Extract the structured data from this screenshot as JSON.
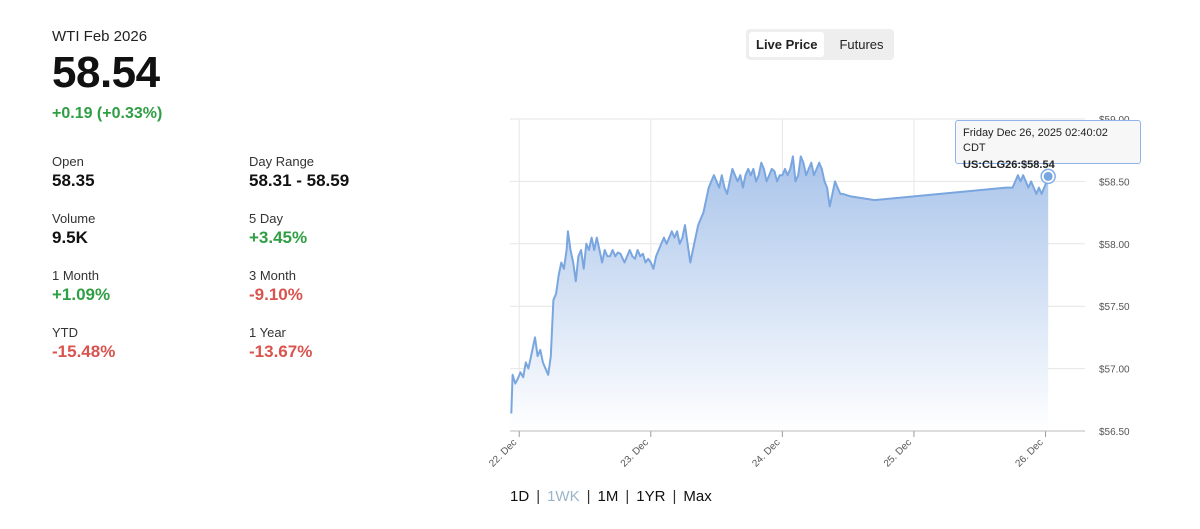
{
  "quote": {
    "instrument": "WTI Feb 2026",
    "price": "58.54",
    "change": "+0.19 (+0.33%)"
  },
  "stats": [
    {
      "label": "Open",
      "value": "58.35",
      "tone": "neutral"
    },
    {
      "label": "Day Range",
      "value": "58.31 - 58.59",
      "tone": "neutral"
    },
    {
      "label": "Volume",
      "value": "9.5K",
      "tone": "neutral"
    },
    {
      "label": "5 Day",
      "value": "+3.45%",
      "tone": "green"
    },
    {
      "label": "1 Month",
      "value": "+1.09%",
      "tone": "green"
    },
    {
      "label": "3 Month",
      "value": "-9.10%",
      "tone": "red"
    },
    {
      "label": "YTD",
      "value": "-15.48%",
      "tone": "red"
    },
    {
      "label": "1 Year",
      "value": "-13.67%",
      "tone": "red"
    }
  ],
  "toggle": {
    "options": [
      "Live Price",
      "Futures"
    ],
    "active": "Live Price"
  },
  "tooltip": {
    "line1": "Friday Dec 26, 2025 02:40:02 CDT",
    "line2": "US:CLG26:$58.54"
  },
  "ranges": {
    "options": [
      "1D",
      "1WK",
      "1M",
      "1YR",
      "Max"
    ],
    "active": "1WK"
  },
  "colors": {
    "line": "#7aa6e0",
    "area_top": "#a9c4ea",
    "area_bottom": "#ffffff",
    "up": "#2f9e44",
    "down": "#d9534f"
  },
  "chart_data": {
    "type": "area",
    "title": "",
    "xlabel": "",
    "ylabel": "",
    "ylim": [
      56.5,
      59.0
    ],
    "y_ticks": [
      56.5,
      57.0,
      57.5,
      58.0,
      58.5,
      59.0
    ],
    "y_tick_labels": [
      "$56.50",
      "$57.00",
      "$57.50",
      "$58.00",
      "$58.50",
      "$59.00"
    ],
    "x_ticks": [
      {
        "label": "22. Dec",
        "day": 22
      },
      {
        "label": "23. Dec",
        "day": 23
      },
      {
        "label": "24. Dec",
        "day": 24
      },
      {
        "label": "25. Dec",
        "day": 25
      },
      {
        "label": "26. Dec",
        "day": 26
      }
    ],
    "grid": true,
    "series": [
      {
        "values": [
          [
            21.94,
            56.64
          ],
          [
            21.95,
            56.95
          ],
          [
            21.97,
            56.88
          ],
          [
            21.99,
            56.92
          ],
          [
            22.01,
            56.97
          ],
          [
            22.03,
            56.93
          ],
          [
            22.05,
            57.05
          ],
          [
            22.07,
            57.0
          ],
          [
            22.09,
            57.1
          ],
          [
            22.11,
            57.2
          ],
          [
            22.12,
            57.25
          ],
          [
            22.14,
            57.1
          ],
          [
            22.16,
            57.15
          ],
          [
            22.18,
            57.05
          ],
          [
            22.2,
            57.0
          ],
          [
            22.22,
            56.95
          ],
          [
            22.24,
            57.1
          ],
          [
            22.26,
            57.55
          ],
          [
            22.28,
            57.6
          ],
          [
            22.3,
            57.75
          ],
          [
            22.32,
            57.85
          ],
          [
            22.34,
            57.8
          ],
          [
            22.36,
            57.95
          ],
          [
            22.37,
            58.1
          ],
          [
            22.39,
            57.95
          ],
          [
            22.41,
            57.85
          ],
          [
            22.43,
            57.7
          ],
          [
            22.45,
            57.9
          ],
          [
            22.47,
            57.95
          ],
          [
            22.49,
            57.8
          ],
          [
            22.51,
            58.0
          ],
          [
            22.53,
            57.95
          ],
          [
            22.55,
            58.05
          ],
          [
            22.57,
            57.95
          ],
          [
            22.59,
            58.05
          ],
          [
            22.61,
            57.95
          ],
          [
            22.63,
            57.85
          ],
          [
            22.65,
            57.95
          ],
          [
            22.67,
            57.9
          ],
          [
            22.69,
            57.9
          ],
          [
            22.71,
            57.95
          ],
          [
            22.73,
            57.9
          ],
          [
            22.75,
            57.93
          ],
          [
            22.77,
            57.92
          ],
          [
            22.8,
            57.85
          ],
          [
            22.82,
            57.9
          ],
          [
            22.84,
            57.95
          ],
          [
            22.86,
            57.9
          ],
          [
            22.88,
            57.88
          ],
          [
            22.9,
            57.95
          ],
          [
            22.92,
            57.9
          ],
          [
            22.94,
            57.92
          ],
          [
            22.96,
            57.85
          ],
          [
            22.98,
            57.88
          ],
          [
            23.0,
            57.85
          ],
          [
            23.02,
            57.8
          ],
          [
            23.04,
            57.9
          ],
          [
            23.06,
            57.95
          ],
          [
            23.08,
            58.0
          ],
          [
            23.1,
            58.05
          ],
          [
            23.12,
            58.0
          ],
          [
            23.14,
            58.05
          ],
          [
            23.16,
            58.1
          ],
          [
            23.18,
            58.05
          ],
          [
            23.2,
            58.1
          ],
          [
            23.22,
            58.0
          ],
          [
            23.24,
            58.05
          ],
          [
            23.26,
            58.15
          ],
          [
            23.28,
            58.0
          ],
          [
            23.3,
            57.85
          ],
          [
            23.32,
            57.95
          ],
          [
            23.34,
            58.05
          ],
          [
            23.36,
            58.15
          ],
          [
            23.38,
            58.2
          ],
          [
            23.4,
            58.25
          ],
          [
            23.42,
            58.35
          ],
          [
            23.44,
            58.45
          ],
          [
            23.46,
            58.5
          ],
          [
            23.48,
            58.55
          ],
          [
            23.5,
            58.5
          ],
          [
            23.52,
            58.45
          ],
          [
            23.54,
            58.55
          ],
          [
            23.56,
            58.45
          ],
          [
            23.58,
            58.4
          ],
          [
            23.6,
            58.5
          ],
          [
            23.62,
            58.6
          ],
          [
            23.64,
            58.55
          ],
          [
            23.66,
            58.5
          ],
          [
            23.68,
            58.55
          ],
          [
            23.7,
            58.45
          ],
          [
            23.72,
            58.55
          ],
          [
            23.74,
            58.6
          ],
          [
            23.76,
            58.55
          ],
          [
            23.78,
            58.6
          ],
          [
            23.8,
            58.5
          ],
          [
            23.82,
            58.55
          ],
          [
            23.84,
            58.65
          ],
          [
            23.86,
            58.6
          ],
          [
            23.88,
            58.5
          ],
          [
            23.9,
            58.55
          ],
          [
            23.92,
            58.6
          ],
          [
            23.94,
            58.58
          ],
          [
            23.96,
            58.5
          ],
          [
            23.98,
            58.55
          ],
          [
            24.0,
            58.55
          ],
          [
            24.02,
            58.6
          ],
          [
            24.04,
            58.55
          ],
          [
            24.06,
            58.6
          ],
          [
            24.08,
            58.7
          ],
          [
            24.1,
            58.5
          ],
          [
            24.12,
            58.55
          ],
          [
            24.14,
            58.7
          ],
          [
            24.16,
            58.65
          ],
          [
            24.18,
            58.55
          ],
          [
            24.2,
            58.6
          ],
          [
            24.22,
            58.65
          ],
          [
            24.24,
            58.55
          ],
          [
            24.26,
            58.6
          ],
          [
            24.28,
            58.65
          ],
          [
            24.3,
            58.6
          ],
          [
            24.32,
            58.5
          ],
          [
            24.34,
            58.45
          ],
          [
            24.36,
            58.3
          ],
          [
            24.38,
            58.4
          ],
          [
            24.4,
            58.5
          ],
          [
            24.42,
            58.45
          ],
          [
            24.44,
            58.4
          ],
          [
            24.46,
            58.4
          ],
          [
            24.52,
            58.38
          ],
          [
            24.7,
            58.35
          ],
          [
            24.9,
            58.37
          ],
          [
            25.1,
            58.39
          ],
          [
            25.3,
            58.41
          ],
          [
            25.5,
            58.43
          ],
          [
            25.7,
            58.45
          ],
          [
            25.75,
            58.45
          ],
          [
            25.77,
            58.5
          ],
          [
            25.79,
            58.55
          ],
          [
            25.81,
            58.5
          ],
          [
            25.83,
            58.55
          ],
          [
            25.85,
            58.5
          ],
          [
            25.87,
            58.45
          ],
          [
            25.89,
            58.5
          ],
          [
            25.91,
            58.45
          ],
          [
            25.93,
            58.4
          ],
          [
            25.95,
            58.45
          ],
          [
            25.97,
            58.4
          ],
          [
            25.99,
            58.45
          ],
          [
            26.01,
            58.5
          ],
          [
            26.02,
            58.55
          ]
        ]
      }
    ],
    "last_point": {
      "label": "Friday Dec 26, 2025 02:40:02 CDT",
      "value": 58.54
    }
  }
}
